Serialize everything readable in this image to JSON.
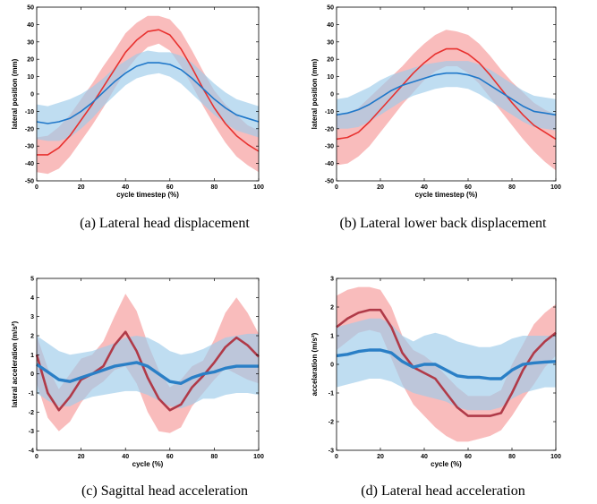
{
  "chart_data": [
    {
      "type": "line",
      "caption": "(a) Lateral head displacement",
      "xlabel": "cycle timestep (%)",
      "ylabel": "lateral position (mm)",
      "xlim": [
        0,
        100
      ],
      "ylim": [
        -50,
        50
      ],
      "xticks": [
        "0",
        "20",
        "40",
        "60",
        "80",
        "100"
      ],
      "yticks": [
        "50",
        "40",
        "30",
        "20",
        "10",
        "0",
        "-10",
        "-20",
        "-30",
        "-40",
        "-50"
      ],
      "x": [
        0,
        5,
        10,
        15,
        20,
        25,
        30,
        35,
        40,
        45,
        50,
        55,
        60,
        65,
        70,
        75,
        80,
        85,
        90,
        95,
        100
      ],
      "series": [
        {
          "color": "#e8312f",
          "band_color": "#f7a6a6",
          "mean": [
            -35,
            -35,
            -31,
            -24,
            -15,
            -6,
            4,
            14,
            24,
            31,
            36,
            37,
            34,
            26,
            15,
            3,
            -8,
            -17,
            -24,
            -29,
            -33
          ],
          "lower": [
            -45,
            -46,
            -43,
            -36,
            -27,
            -18,
            -8,
            3,
            13,
            21,
            27,
            29,
            25,
            16,
            5,
            -7,
            -18,
            -28,
            -36,
            -41,
            -45
          ],
          "upper": [
            -25,
            -24,
            -19,
            -12,
            -3,
            6,
            16,
            25,
            35,
            41,
            45,
            45,
            43,
            36,
            25,
            13,
            2,
            -6,
            -12,
            -18,
            -21
          ]
        },
        {
          "color": "#1f77c9",
          "band_color": "#9ccbe9",
          "mean": [
            -16,
            -17,
            -16,
            -14,
            -10,
            -5,
            1,
            7,
            12,
            16,
            18,
            18,
            17,
            14,
            9,
            3,
            -3,
            -8,
            -12,
            -14,
            -16
          ],
          "lower": [
            -26,
            -27,
            -27,
            -25,
            -20,
            -14,
            -7,
            -1,
            5,
            9,
            11,
            12,
            10,
            6,
            0,
            -6,
            -12,
            -17,
            -21,
            -23,
            -25
          ],
          "upper": [
            -6,
            -7,
            -5,
            -3,
            0,
            4,
            9,
            15,
            19,
            23,
            25,
            24,
            24,
            22,
            18,
            12,
            6,
            1,
            -3,
            -5,
            -7
          ]
        }
      ]
    },
    {
      "type": "line",
      "caption": "(b) Lateral lower back displacement",
      "xlabel": "cycle timestep (%)",
      "ylabel": "lateral position (mm)",
      "xlim": [
        0,
        100
      ],
      "ylim": [
        -50,
        50
      ],
      "xticks": [
        "0",
        "20",
        "40",
        "60",
        "80",
        "100"
      ],
      "yticks": [
        "50",
        "40",
        "30",
        "20",
        "10",
        "0",
        "-10",
        "-20",
        "-30",
        "-40",
        "-50"
      ],
      "x": [
        0,
        5,
        10,
        15,
        20,
        25,
        30,
        35,
        40,
        45,
        50,
        55,
        60,
        65,
        70,
        75,
        80,
        85,
        90,
        95,
        100
      ],
      "series": [
        {
          "color": "#e8312f",
          "band_color": "#f7a6a6",
          "mean": [
            -26,
            -25,
            -22,
            -16,
            -9,
            -2,
            5,
            12,
            18,
            23,
            26,
            26,
            23,
            18,
            11,
            3,
            -5,
            -12,
            -18,
            -22,
            -26
          ],
          "lower": [
            -41,
            -40,
            -36,
            -30,
            -22,
            -14,
            -6,
            1,
            8,
            13,
            16,
            16,
            12,
            6,
            -2,
            -10,
            -18,
            -26,
            -33,
            -39,
            -44
          ],
          "upper": [
            -12,
            -11,
            -8,
            -2,
            4,
            10,
            16,
            23,
            29,
            34,
            37,
            36,
            34,
            29,
            22,
            14,
            7,
            1,
            -5,
            -9,
            -12
          ]
        },
        {
          "color": "#1f77c9",
          "band_color": "#9ccbe9",
          "mean": [
            -12,
            -11,
            -9,
            -6,
            -2,
            2,
            5,
            7,
            9,
            11,
            12,
            12,
            11,
            9,
            5,
            1,
            -3,
            -7,
            -10,
            -11,
            -12
          ],
          "lower": [
            -20,
            -20,
            -19,
            -16,
            -12,
            -8,
            -4,
            -1,
            1,
            3,
            4,
            4,
            3,
            0,
            -4,
            -8,
            -12,
            -16,
            -19,
            -20,
            -21
          ],
          "upper": [
            -3,
            -2,
            1,
            4,
            8,
            11,
            13,
            15,
            17,
            18,
            19,
            19,
            19,
            17,
            14,
            10,
            6,
            2,
            -1,
            -2,
            -3
          ]
        }
      ]
    },
    {
      "type": "line",
      "caption": "(c) Sagittal head acceleration",
      "xlabel": "cycle (%)",
      "ylabel": "lateral acceleration (m/s²)",
      "xlim": [
        0,
        100
      ],
      "ylim": [
        -4,
        5
      ],
      "xticks": [
        "0",
        "20",
        "40",
        "60",
        "80",
        "100"
      ],
      "yticks": [
        "5",
        "4",
        "3",
        "2",
        "1",
        "0",
        "-1",
        "-2",
        "-3",
        "-4"
      ],
      "x": [
        0,
        5,
        10,
        15,
        20,
        25,
        30,
        35,
        40,
        45,
        50,
        55,
        60,
        65,
        70,
        75,
        80,
        85,
        90,
        95,
        100
      ],
      "series": [
        {
          "color": "#b03a48",
          "band_color": "#f7a6a6",
          "mean": [
            1.0,
            -1.0,
            -1.9,
            -1.2,
            -0.3,
            0.0,
            0.4,
            1.5,
            2.2,
            1.2,
            -0.2,
            -1.3,
            -1.9,
            -1.6,
            -0.7,
            -0.1,
            0.6,
            1.4,
            1.9,
            1.5,
            0.9
          ],
          "lower": [
            -0.5,
            -2.3,
            -3.0,
            -2.5,
            -1.5,
            -0.8,
            -0.4,
            0.2,
            0.4,
            -0.5,
            -2.0,
            -3.0,
            -3.1,
            -2.8,
            -1.7,
            -1.0,
            -0.3,
            0.3,
            0.0,
            -0.3,
            -0.5
          ],
          "upper": [
            2.0,
            0.3,
            -0.8,
            0.0,
            0.8,
            1.0,
            1.7,
            3.0,
            4.2,
            3.3,
            1.6,
            0.2,
            -0.7,
            -0.3,
            0.4,
            0.7,
            1.8,
            3.2,
            4.0,
            3.2,
            2.1
          ]
        },
        {
          "color": "#2a7fc6",
          "band_color": "#9ccbe9",
          "mean": [
            0.5,
            0.1,
            -0.3,
            -0.4,
            -0.2,
            0.0,
            0.2,
            0.4,
            0.5,
            0.6,
            0.4,
            0.0,
            -0.4,
            -0.5,
            -0.2,
            0.0,
            0.1,
            0.3,
            0.4,
            0.4,
            0.4
          ],
          "lower": [
            -1.0,
            -1.4,
            -1.7,
            -1.7,
            -1.4,
            -1.2,
            -1.1,
            -1.0,
            -0.9,
            -0.9,
            -1.1,
            -1.4,
            -1.7,
            -1.8,
            -1.6,
            -1.3,
            -1.3,
            -1.1,
            -1.0,
            -1.0,
            -1.1
          ],
          "upper": [
            2.0,
            1.6,
            1.2,
            1.0,
            1.1,
            1.2,
            1.4,
            1.6,
            1.9,
            2.0,
            1.9,
            1.6,
            1.2,
            1.0,
            1.1,
            1.3,
            1.6,
            1.9,
            2.0,
            2.1,
            2.1
          ]
        }
      ]
    },
    {
      "type": "line",
      "caption": "(d) Lateral head acceleration",
      "xlabel": "cycle (%)",
      "ylabel": "accelaration (m/s²)",
      "xlim": [
        0,
        100
      ],
      "ylim": [
        -3,
        3
      ],
      "xticks": [
        "0",
        "20",
        "40",
        "60",
        "80",
        "100"
      ],
      "yticks": [
        "3",
        "2",
        "1",
        "0",
        "-1",
        "-2",
        "-3"
      ],
      "x": [
        0,
        5,
        10,
        15,
        20,
        25,
        30,
        35,
        40,
        45,
        50,
        55,
        60,
        65,
        70,
        75,
        80,
        85,
        90,
        95,
        100
      ],
      "series": [
        {
          "color": "#b03a48",
          "band_color": "#f7a6a6",
          "mean": [
            1.3,
            1.6,
            1.8,
            1.9,
            1.9,
            1.3,
            0.4,
            -0.1,
            -0.3,
            -0.5,
            -1.0,
            -1.5,
            -1.8,
            -1.8,
            -1.8,
            -1.7,
            -1.0,
            -0.2,
            0.4,
            0.8,
            1.1
          ],
          "lower": [
            0.5,
            0.8,
            1.1,
            1.2,
            1.1,
            0.2,
            -0.7,
            -1.4,
            -1.8,
            -2.2,
            -2.5,
            -2.7,
            -2.7,
            -2.6,
            -2.5,
            -2.3,
            -1.8,
            -1.2,
            -0.7,
            -0.1,
            0.3
          ],
          "upper": [
            2.4,
            2.6,
            2.7,
            2.7,
            2.6,
            2.0,
            1.0,
            0.5,
            0.3,
            0.0,
            -0.4,
            -0.8,
            -1.1,
            -1.1,
            -1.1,
            -0.9,
            0.0,
            0.7,
            1.4,
            1.8,
            2.1
          ]
        },
        {
          "color": "#2a7fc6",
          "band_color": "#9ccbe9",
          "mean": [
            0.3,
            0.35,
            0.45,
            0.5,
            0.5,
            0.4,
            0.1,
            -0.1,
            0.0,
            0.0,
            -0.2,
            -0.4,
            -0.45,
            -0.45,
            -0.5,
            -0.5,
            -0.2,
            0.0,
            0.05,
            0.08,
            0.1
          ],
          "lower": [
            -0.8,
            -0.7,
            -0.6,
            -0.5,
            -0.5,
            -0.6,
            -0.8,
            -1.0,
            -1.1,
            -1.2,
            -1.3,
            -1.5,
            -1.6,
            -1.6,
            -1.6,
            -1.5,
            -1.2,
            -1.0,
            -0.9,
            -0.8,
            -0.8
          ],
          "upper": [
            1.3,
            1.4,
            1.5,
            1.6,
            1.6,
            1.4,
            1.0,
            0.8,
            1.0,
            1.1,
            1.0,
            0.8,
            0.7,
            0.6,
            0.6,
            0.7,
            0.9,
            1.0,
            1.0,
            1.0,
            1.0
          ]
        }
      ]
    }
  ]
}
